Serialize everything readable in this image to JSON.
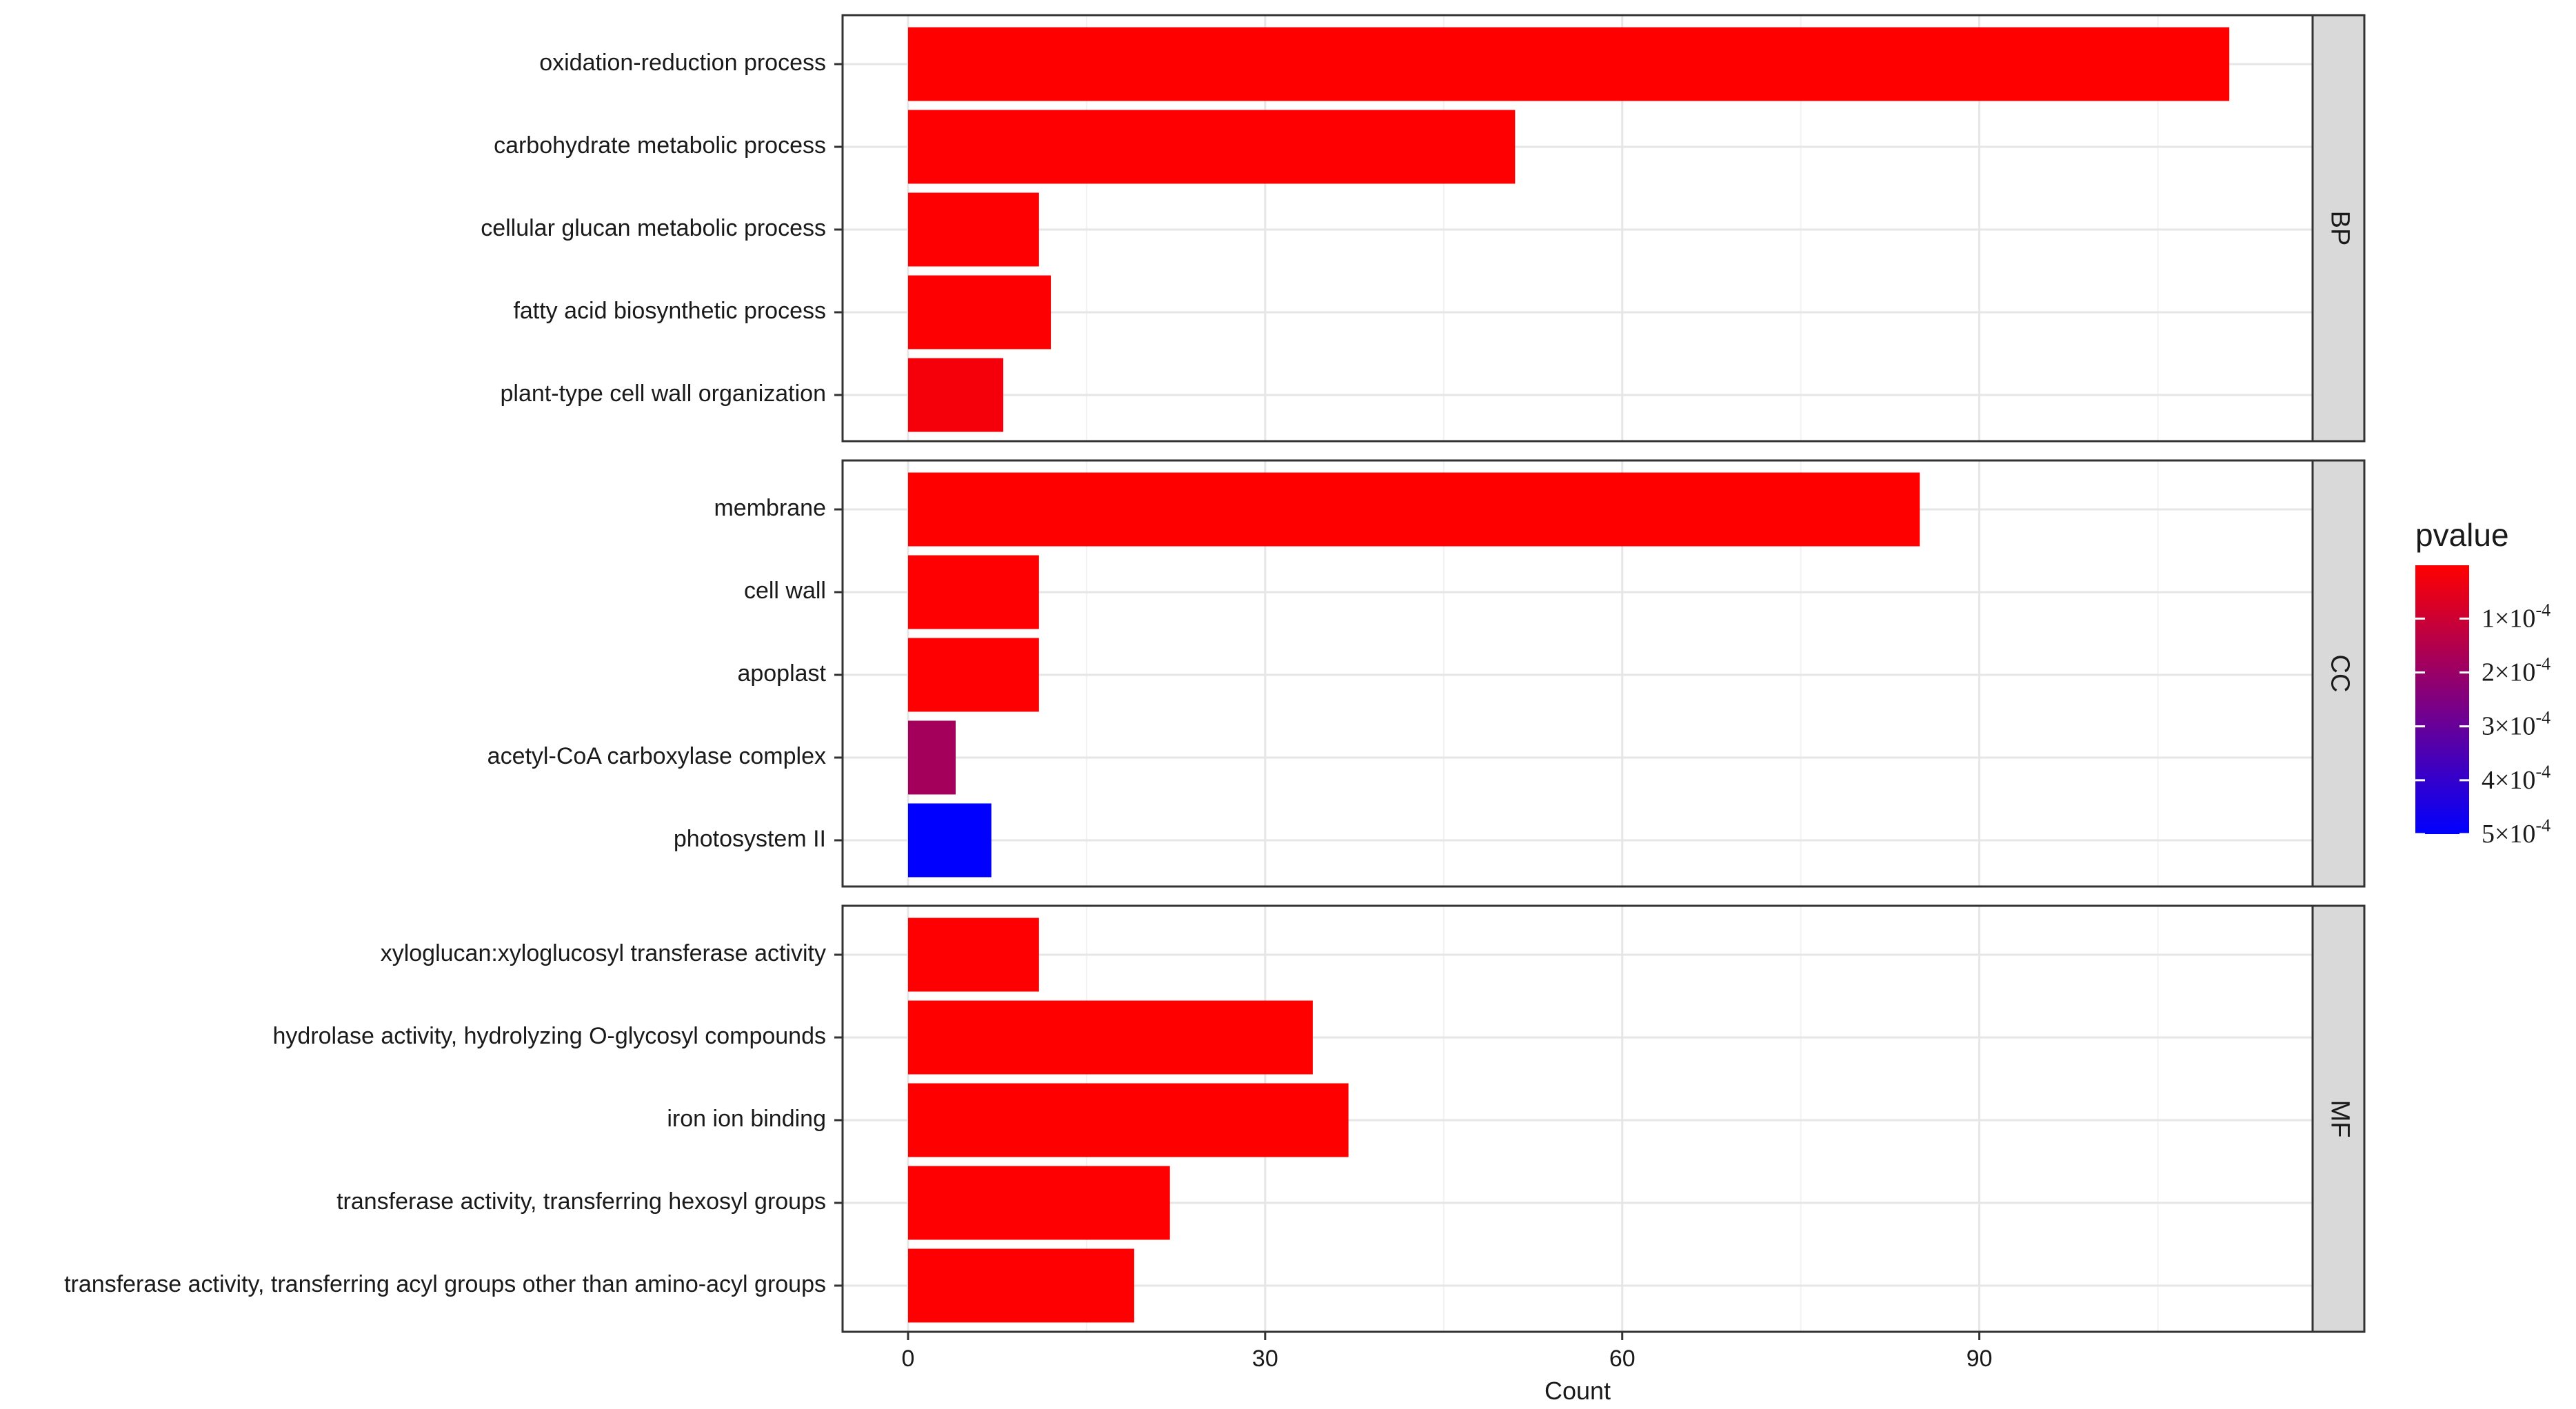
{
  "chart_data": {
    "type": "bar",
    "orientation": "horizontal",
    "xlabel": "Count",
    "x_ticks": [
      0,
      30,
      60,
      90
    ],
    "xlim": [
      -5.5,
      118
    ],
    "grid": true,
    "panels": [
      {
        "name": "BP",
        "categories": [
          "oxidation-reduction process",
          "carbohydrate metabolic process",
          "cellular glucan metabolic process",
          "fatty acid biosynthetic process",
          "plant-type cell wall organization"
        ],
        "values": [
          111,
          51,
          11,
          12,
          8
        ],
        "pvalues": [
          1e-06,
          2e-06,
          3e-06,
          4e-06,
          2e-05
        ]
      },
      {
        "name": "CC",
        "categories": [
          "membrane",
          "cell wall",
          "apoplast",
          "acetyl-CoA carboxylase complex",
          "photosystem II"
        ],
        "values": [
          85,
          11,
          11,
          4,
          7
        ],
        "pvalues": [
          1e-06,
          3e-06,
          3e-06,
          0.00018,
          0.0005
        ]
      },
      {
        "name": "MF",
        "categories": [
          "xyloglucan:xyloglucosyl transferase activity",
          "hydrolase activity, hydrolyzing O-glycosyl compounds",
          "iron ion binding",
          "transferase activity, transferring hexosyl groups",
          "transferase activity, transferring acyl groups other than amino-acyl groups"
        ],
        "values": [
          11,
          34,
          37,
          22,
          19
        ],
        "pvalues": [
          3e-06,
          1e-06,
          1e-06,
          2e-06,
          2e-06
        ]
      }
    ],
    "color_scale": {
      "variable": "pvalue",
      "low_color": "#ff0000",
      "high_color": "#0000ff",
      "min": 1e-06,
      "max": 0.0005
    },
    "legend": {
      "title": "pvalue",
      "position": "right",
      "ticks": [
        {
          "value": 0.0001,
          "mantissa": "1",
          "exponent": "-4"
        },
        {
          "value": 0.0002,
          "mantissa": "2",
          "exponent": "-4"
        },
        {
          "value": 0.0003,
          "mantissa": "3",
          "exponent": "-4"
        },
        {
          "value": 0.0004,
          "mantissa": "4",
          "exponent": "-4"
        },
        {
          "value": 0.0005,
          "mantissa": "5",
          "exponent": "-4"
        }
      ]
    }
  }
}
